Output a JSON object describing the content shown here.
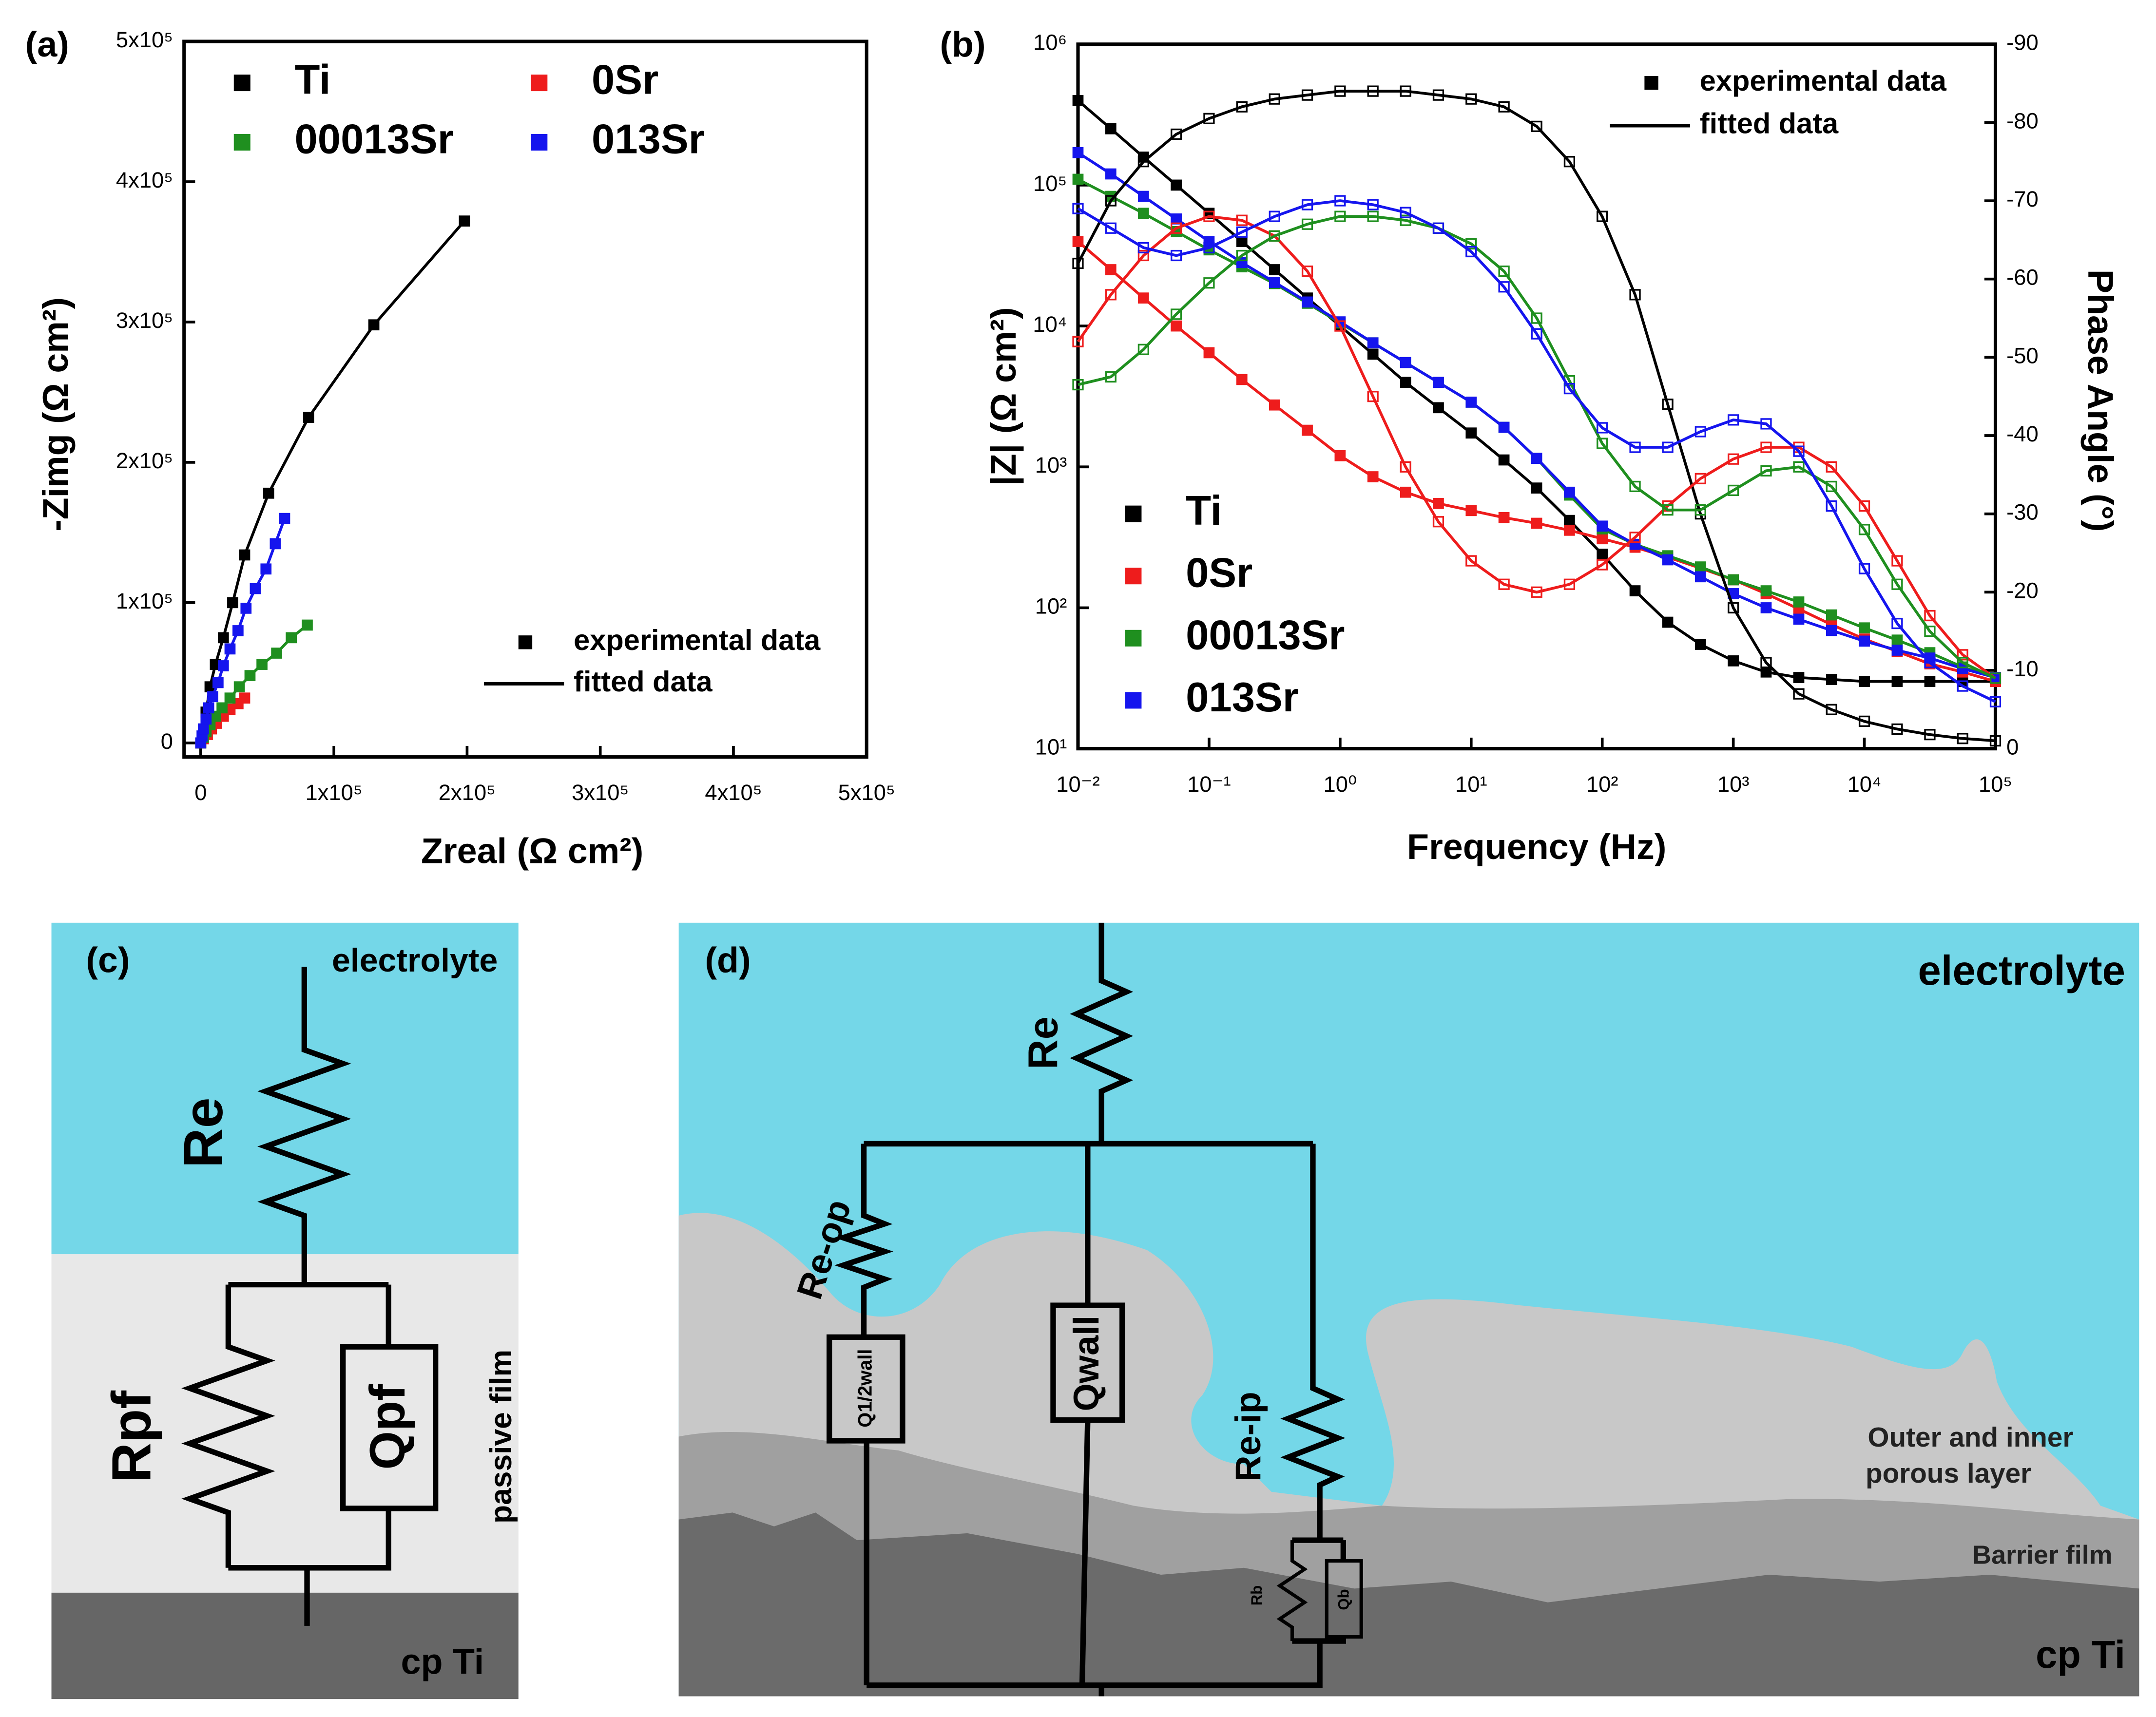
{
  "chart_data": [
    {
      "type": "scatter",
      "panel_label": "(a)",
      "x_label": "Zreal (Ω cm²)",
      "y_label": "-Zimg (Ω cm²)",
      "xlim": [
        -12500,
        500000
      ],
      "ylim": [
        -10000,
        500000
      ],
      "xticks": [
        0,
        {
          "value": 100000,
          "label": "1x10⁵"
        },
        {
          "value": 200000,
          "label": "2x10⁵"
        },
        {
          "value": 300000,
          "label": "3x10⁵"
        },
        {
          "value": 400000,
          "label": "4x10⁵"
        },
        {
          "value": 500000,
          "label": "5x10⁵"
        }
      ],
      "yticks": [
        0,
        {
          "value": 100000,
          "label": "1x10⁵"
        },
        {
          "value": 200000,
          "label": "2x10⁵"
        },
        {
          "value": 300000,
          "label": "3x10⁵"
        },
        {
          "value": 400000,
          "label": "4x10⁵"
        },
        {
          "value": 500000,
          "label": "5x10⁵"
        }
      ],
      "legend_notes": [
        "experimental data",
        "fitted data"
      ],
      "series": [
        {
          "name": "Ti",
          "color": "#000000",
          "x": [
            0,
            2000,
            4000,
            7000,
            11000,
            17000,
            24000,
            33000,
            51000,
            81000,
            130000,
            198000
          ],
          "values": [
            0,
            9000,
            22000,
            40000,
            56000,
            75000,
            100000,
            134000,
            178000,
            232000,
            298000,
            372000
          ]
        },
        {
          "name": "0Sr",
          "color": "#ee1c1c",
          "x": [
            0,
            2000,
            5000,
            8000,
            12000,
            17000,
            22000,
            28000,
            33000
          ],
          "values": [
            0,
            3000,
            6000,
            10000,
            14000,
            19000,
            24000,
            28000,
            32000
          ]
        },
        {
          "name": "00013Sr",
          "color": "#1f8f1f",
          "x": [
            0,
            2000,
            4000,
            7000,
            11000,
            16000,
            22000,
            29000,
            37000,
            46000,
            57000,
            68000,
            80000
          ],
          "values": [
            0,
            4000,
            8000,
            13000,
            19000,
            25000,
            32000,
            40000,
            48000,
            56000,
            64000,
            75000,
            84000
          ]
        },
        {
          "name": "013Sr",
          "color": "#1515ee",
          "x": [
            0,
            1000,
            2000,
            4000,
            6000,
            9000,
            13000,
            17000,
            22000,
            28000,
            34000,
            41000,
            49000,
            56000,
            63000
          ],
          "values": [
            0,
            5000,
            10000,
            17000,
            25000,
            33000,
            43000,
            55000,
            67000,
            80000,
            96000,
            110000,
            124000,
            142000,
            160000
          ]
        }
      ]
    },
    {
      "type": "line",
      "panel_label": "(b)",
      "x_label": "Frequency (Hz)",
      "y_label": "|Z| (Ω cm²)",
      "y2_label": "Phase Angle (°)",
      "xscale": "log",
      "yscale": "log",
      "xlim": [
        0.01,
        100000
      ],
      "ylim": [
        10,
        1000000
      ],
      "y2lim": [
        0,
        -90
      ],
      "xticks": [
        {
          "value": 0.01,
          "label": "10⁻²"
        },
        {
          "value": 0.1,
          "label": "10⁻¹"
        },
        {
          "value": 1,
          "label": "10⁰"
        },
        {
          "value": 10,
          "label": "10¹"
        },
        {
          "value": 100,
          "label": "10²"
        },
        {
          "value": 1000,
          "label": "10³"
        },
        {
          "value": 10000,
          "label": "10⁴"
        },
        {
          "value": 100000,
          "label": "10⁵"
        }
      ],
      "yticks": [
        {
          "value": 10,
          "label": "10¹"
        },
        {
          "value": 100,
          "label": "10²"
        },
        {
          "value": 1000,
          "label": "10³"
        },
        {
          "value": 10000,
          "label": "10⁴"
        },
        {
          "value": 100000,
          "label": "10⁵"
        },
        {
          "value": 1000000,
          "label": "10⁶"
        }
      ],
      "y2ticks": [
        0,
        -10,
        -20,
        -30,
        -40,
        -50,
        -60,
        -70,
        -80,
        -90
      ],
      "legend_notes": [
        "experimental data",
        "fitted data"
      ],
      "x": [
        0.01,
        0.0178,
        0.0316,
        0.0562,
        0.1,
        0.178,
        0.316,
        0.562,
        1,
        1.78,
        3.16,
        5.62,
        10,
        17.8,
        31.6,
        56.2,
        100,
        178,
        316,
        562,
        1000,
        1780,
        3160,
        5620,
        10000,
        17800,
        31600,
        56200,
        100000
      ],
      "series": [
        {
          "name": "Ti",
          "color": "#000000",
          "values": [
            398000,
            251000,
            158000,
            100000,
            63100,
            39800,
            25100,
            15800,
            10000,
            6310,
            3980,
            2630,
            1740,
            1120,
            708,
            417,
            240,
            132,
            79,
            55,
            42,
            35,
            32,
            31,
            30,
            30,
            30,
            30,
            30
          ]
        },
        {
          "name": "0Sr",
          "color": "#ee1c1c",
          "values": [
            39800,
            25100,
            15800,
            10000,
            6460,
            4170,
            2750,
            1820,
            1200,
            851,
            661,
            550,
            490,
            437,
            398,
            355,
            309,
            269,
            229,
            191,
            158,
            126,
            98,
            76,
            60,
            49,
            40,
            35,
            30
          ]
        },
        {
          "name": "00013Sr",
          "color": "#1f8f1f",
          "values": [
            110000,
            83200,
            63100,
            46800,
            34700,
            26300,
            20000,
            14500,
            10500,
            7590,
            5500,
            3980,
            2880,
            1910,
            1150,
            631,
            363,
            282,
            234,
            195,
            158,
            132,
            110,
            89,
            72,
            59,
            48,
            38,
            32
          ]
        },
        {
          "name": "013Sr",
          "color": "#1515ee",
          "values": [
            170000,
            120000,
            83200,
            57500,
            39800,
            28200,
            20400,
            14800,
            10700,
            7590,
            5500,
            3980,
            2880,
            1910,
            1150,
            661,
            380,
            282,
            219,
            166,
            126,
            100,
            83,
            69,
            58,
            50,
            44,
            37,
            32
          ]
        },
        {
          "color": "#000000",
          "axis": "y2",
          "open": true,
          "values": [
            -62,
            -70,
            -75,
            -78.5,
            -80.5,
            -82,
            -83,
            -83.5,
            -84,
            -84,
            -84,
            -83.5,
            -83,
            -82,
            -79.5,
            -75,
            -68,
            -58,
            -44,
            -30,
            -18,
            -11,
            -7,
            -5,
            -3.5,
            -2.5,
            -1.8,
            -1.3,
            -1
          ]
        },
        {
          "color": "#ee1c1c",
          "axis": "y2",
          "open": true,
          "values": [
            -52,
            -58,
            -63,
            -66.5,
            -68,
            -67.5,
            -65.5,
            -61,
            -54,
            -45,
            -36,
            -29,
            -24,
            -21,
            -20,
            -21,
            -23.5,
            -27,
            -31,
            -34.5,
            -37,
            -38.5,
            -38.5,
            -36,
            -31,
            -24,
            -17,
            -12,
            -9
          ]
        },
        {
          "color": "#1f8f1f",
          "axis": "y2",
          "open": true,
          "values": [
            -46.5,
            -47.5,
            -51,
            -55.5,
            -59.5,
            -63,
            -65.5,
            -67,
            -68,
            -68,
            -67.5,
            -66.5,
            -64.5,
            -61,
            -55,
            -47,
            -39,
            -33.5,
            -30.5,
            -30.5,
            -33,
            -35.5,
            -36,
            -33.5,
            -28,
            -21,
            -15,
            -11,
            -9
          ]
        },
        {
          "color": "#1515ee",
          "axis": "y2",
          "open": true,
          "values": [
            -69,
            -66.5,
            -64,
            -63,
            -64,
            -66,
            -68,
            -69.5,
            -70,
            -69.5,
            -68.5,
            -66.5,
            -63.5,
            -59,
            -53,
            -46,
            -41,
            -38.5,
            -38.5,
            -40.5,
            -42,
            -41.5,
            -38,
            -31,
            -23,
            -16,
            -11,
            -8,
            -6
          ]
        }
      ]
    }
  ],
  "diagrams": [
    {
      "panel_label": "(c)",
      "labels": [
        "electrolyte",
        "Re",
        "Rpf",
        "Qpf",
        "passive film",
        "cp Ti"
      ]
    },
    {
      "panel_label": "(d)",
      "labels": [
        "electrolyte",
        "Re",
        "Re-op",
        "Q1/2wall",
        "Qwall",
        "Re-ip",
        "Rb",
        "Qb",
        "Outer and inner",
        "porous layer",
        "Barrier film",
        "cp Ti"
      ]
    }
  ]
}
